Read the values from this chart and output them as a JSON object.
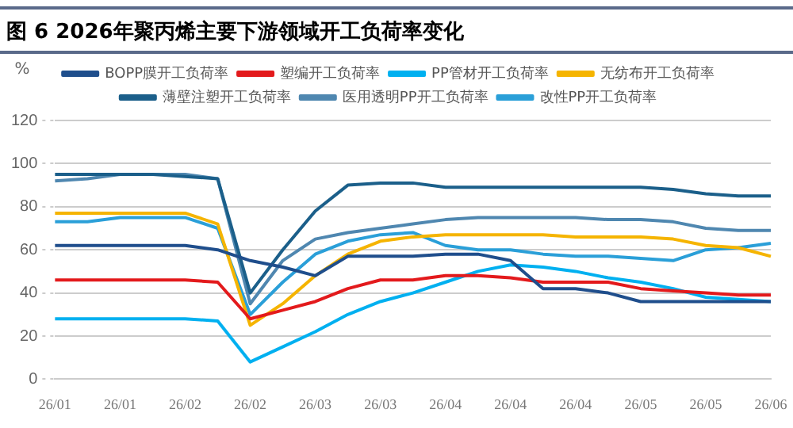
{
  "chart_data": {
    "type": "line",
    "title": "图 6  2026年聚丙烯主要下游领域开工负荷率变化",
    "ylabel": "%",
    "categories": [
      "26/01",
      null,
      "26/01",
      null,
      "26/02",
      null,
      "26/02",
      null,
      "26/03",
      null,
      "26/03",
      null,
      "26/04",
      null,
      "26/04",
      null,
      "26/04",
      null,
      "26/05",
      null,
      "26/05",
      null,
      "26/06"
    ],
    "series": [
      {
        "name": "BOPP膜开工负荷率",
        "color": "#1f4e8c",
        "values": [
          62,
          62,
          62,
          62,
          62,
          60,
          55,
          52,
          48,
          57,
          57,
          57,
          58,
          58,
          55,
          42,
          42,
          40,
          36,
          36,
          36,
          36,
          36
        ]
      },
      {
        "name": "塑编开工负荷率",
        "color": "#e31a1c",
        "values": [
          46,
          46,
          46,
          46,
          46,
          45,
          28,
          32,
          36,
          42,
          46,
          46,
          48,
          48,
          47,
          45,
          45,
          45,
          42,
          41,
          40,
          39,
          39
        ]
      },
      {
        "name": "PP管材开工负荷率",
        "color": "#00b0f0",
        "values": [
          28,
          28,
          28,
          28,
          28,
          27,
          8,
          15,
          22,
          30,
          36,
          40,
          45,
          50,
          53,
          52,
          50,
          47,
          45,
          42,
          38,
          37,
          36
        ]
      },
      {
        "name": "无纺布开工负荷率",
        "color": "#f5b400",
        "values": [
          77,
          77,
          77,
          77,
          77,
          72,
          25,
          35,
          48,
          58,
          64,
          66,
          67,
          67,
          67,
          67,
          66,
          66,
          66,
          65,
          62,
          61,
          57
        ]
      },
      {
        "name": "薄壁注塑开工负荷率",
        "color": "#1b5f8a",
        "values": [
          95,
          95,
          95,
          95,
          94,
          93,
          40,
          60,
          78,
          90,
          91,
          91,
          89,
          89,
          89,
          89,
          89,
          89,
          89,
          88,
          86,
          85,
          85
        ]
      },
      {
        "name": "医用透明PP开工负荷率",
        "color": "#4f87b0",
        "values": [
          92,
          93,
          95,
          95,
          95,
          93,
          35,
          55,
          65,
          68,
          70,
          72,
          74,
          75,
          75,
          75,
          75,
          74,
          74,
          73,
          70,
          69,
          69
        ]
      },
      {
        "name": "改性PP开工负荷率",
        "color": "#2a9fd8",
        "values": [
          73,
          73,
          75,
          75,
          75,
          70,
          30,
          45,
          58,
          64,
          67,
          68,
          62,
          60,
          60,
          58,
          57,
          57,
          56,
          55,
          60,
          61,
          63
        ]
      }
    ],
    "ylim": [
      0,
      120
    ],
    "yticks": [
      0,
      20,
      40,
      60,
      80,
      100,
      120
    ],
    "grid": "y",
    "legend": "top",
    "marker": "none",
    "line_style": "solid"
  }
}
